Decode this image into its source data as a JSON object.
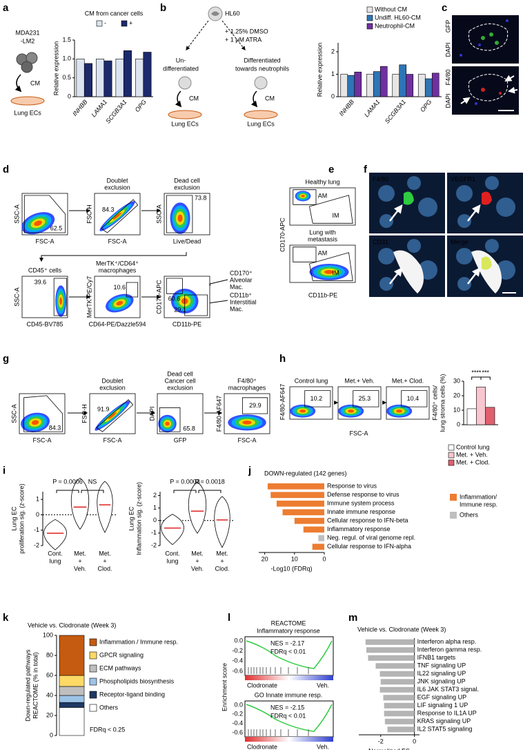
{
  "figure": {
    "panel_labels": [
      "a",
      "b",
      "c",
      "d",
      "e",
      "f",
      "g",
      "h",
      "i",
      "j",
      "k",
      "l",
      "m"
    ],
    "a": {
      "cell_line": [
        "MDA231",
        "-LM2"
      ],
      "cm": "CM",
      "target": "Lung ECs"
    },
    "b": {
      "cell": "HL60",
      "treatment": [
        "+ 1.25% DMSO",
        "+ 1 μM ATRA"
      ],
      "undifferentiated": [
        "Un-",
        "differentiated"
      ],
      "differentiated": [
        "Differentiated",
        "towards neutrophils"
      ],
      "cm": "CM",
      "target": "Lung ECs"
    },
    "c": {
      "top": [
        "GFP",
        "DAPI"
      ],
      "bottom": [
        "F4/80",
        "DAPI"
      ]
    },
    "d": {
      "plots": [
        {
          "y": "SSC-A",
          "x": "FSC-A",
          "gates": [
            62.5
          ]
        },
        {
          "title": [
            "Doublet",
            "exclusion"
          ],
          "y": "FSC-H",
          "x": "FSC-A",
          "gates": [
            84.3
          ]
        },
        {
          "title": [
            "Dead cell",
            "exclusion"
          ],
          "y": "SSC-A",
          "x": "Live/Dead",
          "gates": [
            73.8
          ]
        },
        {
          "title": [
            "CD45⁺ cells"
          ],
          "y": "SSC-A",
          "x": "CD45-BV785",
          "gates": [
            39.6
          ]
        },
        {
          "title": [
            "MerTK⁺/CD64⁺",
            "macrophages"
          ],
          "y": "MerTK-PE/Cy7",
          "x": "CD64-PE/Dazzle594",
          "gates": [
            10.6
          ]
        },
        {
          "y": "CD170-APC",
          "x": "CD11b-PE",
          "gates": [
            60.6,
            29.1
          ]
        }
      ],
      "annotations": [
        [
          "CD170⁺",
          "Alveolar",
          "Mac."
        ],
        [
          "CD11b⁺",
          "Interstitial",
          "Mac."
        ]
      ]
    },
    "e": {
      "plots": [
        {
          "title": [
            "Healthy lung"
          ],
          "gates": [
            "AM",
            "IM"
          ]
        },
        {
          "title": [
            "Lung with",
            "metastasis"
          ],
          "gates": [
            "AM",
            "IM"
          ]
        }
      ],
      "y": "CD170-APC",
      "x": "CD11b-PE"
    },
    "f": {
      "panels": [
        "F4/80",
        "VEGFR1",
        "CD31",
        "Merge"
      ]
    },
    "g": {
      "plots": [
        {
          "y": "SSC-A",
          "x": "FSC-A",
          "gates": [
            84.3
          ]
        },
        {
          "title": [
            "Doublet",
            "exclusion"
          ],
          "y": "FSC-H",
          "x": "FSC-A",
          "gates": [
            91.9
          ]
        },
        {
          "title": [
            "Dead cell",
            "Cancer cell",
            "exclusion"
          ],
          "y": "DAPI",
          "x": "GFP",
          "gates": [
            65.8
          ]
        },
        {
          "title": [
            "F4/80⁺",
            "macrophages"
          ],
          "y": "F4/80-AF647",
          "x": "FSC-A",
          "gates": [
            29.9
          ]
        }
      ]
    },
    "h": {
      "plots": [
        {
          "title": [
            "Control lung"
          ],
          "gates": [
            10.2
          ]
        },
        {
          "title": [
            "Met.+ Veh."
          ],
          "gates": [
            25.3
          ]
        },
        {
          "title": [
            "Met.+ Clod."
          ],
          "gates": [
            10.4
          ]
        }
      ],
      "y": "F4/80-AF647",
      "x": "FSC-A"
    },
    "l": {
      "title": "REACTOME",
      "panels": [
        {
          "title": "Inflammatory response",
          "nes": "NES = -2.17",
          "fdr": "FDRq < 0.01"
        },
        {
          "title": "GO Innate immune resp.",
          "nes": "NES = -2.15",
          "fdr": "FDRq < 0.01"
        }
      ],
      "yticks": [
        "0.0",
        "-0.2",
        "-0.4",
        "-0.6"
      ],
      "ylabel": "Enrichment score",
      "xlabels": [
        "Clodronate",
        "Veh."
      ]
    }
  },
  "chart_data": [
    {
      "type": "bar",
      "ylabel": "Relative expression",
      "legend_title": "CM from cancer cells",
      "categories": [
        "INHBB",
        "LAMA1",
        "SCGB3A1",
        "OPG"
      ],
      "series": [
        {
          "name": "-",
          "color": "#dbe4f0",
          "values": [
            1,
            1,
            1,
            1
          ]
        },
        {
          "name": "+",
          "color": "#1c2a6b",
          "values": [
            0.88,
            0.95,
            1.22,
            1.18
          ]
        }
      ],
      "ylim": [
        0,
        1.5
      ],
      "yticks": [
        0,
        0.5,
        {
          "value": 1,
          "label": "1.0"
        },
        1.5
      ]
    },
    {
      "type": "bar",
      "ylabel": "Relative expression",
      "categories": [
        "INHBB",
        "LAMA1",
        "SCGB3A1",
        "OPG"
      ],
      "series": [
        {
          "name": "Without CM",
          "color": "#e6e6e6",
          "values": [
            1,
            1,
            1,
            1
          ]
        },
        {
          "name": "Undiff. HL60-CM",
          "color": "#2e75b6",
          "values": [
            0.95,
            1.12,
            1.42,
            0.8
          ]
        },
        {
          "name": "Neutrophil-CM",
          "color": "#7030a0",
          "values": [
            1.1,
            1.35,
            1.0,
            1.05
          ]
        }
      ],
      "ylim": [
        0,
        2.4
      ],
      "yticks": [
        0,
        1,
        2
      ]
    },
    {
      "type": "bar",
      "ylabel": [
        "F4/80⁺ cells/",
        "lung stroma cells (%)"
      ],
      "categories": [
        null
      ],
      "series": [
        {
          "name": "Control lung",
          "color": "#ffffff",
          "values": [
            11
          ]
        },
        {
          "name": "Met. + Veh.",
          "color": "#f7c6cf",
          "values": [
            26
          ]
        },
        {
          "name": "Met. + Clod.",
          "color": "#e0606e",
          "values": [
            12
          ]
        }
      ],
      "ylim": [
        0,
        30
      ],
      "yticks": [
        0,
        10,
        20,
        30
      ],
      "annotations": [
        "****",
        "***"
      ]
    },
    {
      "type": "violin",
      "ylabel": [
        "Lung EC",
        "proliferation sig. (z-score)"
      ],
      "categories": [
        [
          "Cont.",
          "lung"
        ],
        [
          "Met.",
          "+",
          "Veh."
        ],
        [
          "Met.",
          "+",
          "Clod."
        ]
      ],
      "values": [
        -1.2,
        0.5,
        0.65
      ],
      "ylim": [
        -2,
        1.5
      ],
      "yticks": [
        -2,
        -1,
        0,
        1
      ],
      "annotations": [
        "P = 0.0006",
        "NS"
      ]
    },
    {
      "type": "violin",
      "ylabel": [
        "Lung EC",
        "Inflammation sig. (z-score)"
      ],
      "categories": [
        [
          "Cont.",
          "lung"
        ],
        [
          "Met.",
          "+",
          "Veh."
        ],
        [
          "Met.",
          "+",
          "Clod."
        ]
      ],
      "values": [
        -0.6,
        0.75,
        0.05
      ],
      "ylim": [
        -2,
        2.3
      ],
      "yticks": [
        -2,
        -1,
        0,
        1,
        2
      ],
      "annotations": [
        "P = 0.0003",
        "P = 0.0018"
      ]
    },
    {
      "type": "barh",
      "title": "DOWN-regulated (142 genes)",
      "categories": [
        "Response to virus",
        "Defense response to virus",
        "Immune system process",
        "Innate immune response",
        "Cellular response to IFN-beta",
        "Inflammatory response",
        "Neg. regul. of viral genome repl.",
        "Cellular response to IFN-alpha"
      ],
      "values": [
        19,
        18,
        16,
        14,
        10,
        7,
        2,
        4
      ],
      "colors": [
        "#ed7d31",
        "#ed7d31",
        "#ed7d31",
        "#ed7d31",
        "#ed7d31",
        "#ed7d31",
        "#bfbfbf",
        "#ed7d31"
      ],
      "legend": [
        {
          "name": [
            "Inflammation/",
            "Immune resp."
          ],
          "color": "#ed7d31"
        },
        {
          "name": [
            "Others"
          ],
          "color": "#bfbfbf"
        }
      ],
      "xlabel": "-Log10 (FDRq)",
      "xlim": [
        0,
        22
      ],
      "xticks": [
        0,
        10,
        20
      ],
      "reversed": true
    },
    {
      "type": "stacked_bar",
      "title": "Vehicle vs. Clodronate (Week 3)",
      "ylabel": [
        "Down-regulated pathways",
        "REACTOME (% in total)"
      ],
      "series": [
        {
          "name": "Inflammation / Immune resp.",
          "color": "#c55a11",
          "values": [
            40
          ]
        },
        {
          "name": "GPCR signaling",
          "color": "#ffd966",
          "values": [
            11
          ]
        },
        {
          "name": "ECM pathways",
          "color": "#bfbfbf",
          "values": [
            9
          ]
        },
        {
          "name": "Phospholipids biosynthesis",
          "color": "#9dc3e6",
          "values": [
            7
          ]
        },
        {
          "name": "Receptor-ligand binding",
          "color": "#1f3864",
          "values": [
            5
          ]
        },
        {
          "name": "Others",
          "color": "#ffffff",
          "values": [
            28
          ]
        }
      ],
      "ylim": [
        0,
        100
      ],
      "yticks": [
        0,
        20,
        40,
        60,
        80,
        100
      ],
      "annotations": [
        "FDRq < 0.25"
      ]
    },
    {
      "type": "barh",
      "title": "Vehicle vs. Clodronate (Week 3)",
      "categories": [
        "Interferon alpha resp.",
        "Interferon gamma resp.",
        "IFNB1 targets",
        "TNF signaling UP",
        "IL22 signaling UP",
        "JNK signaling UP",
        "IL6 JAK STAT3 signal.",
        "EGF signaling UP",
        "LIF signaling 1 UP",
        "Response to IL1A UP",
        "KRAS signaling UP",
        "IL2 STAT5 signaling"
      ],
      "values": [
        -2.9,
        -2.85,
        -2.75,
        -2.3,
        -2.05,
        -2.0,
        -2.05,
        -1.85,
        -1.8,
        -1.8,
        -1.75,
        -1.6
      ],
      "color": "#b4b4b4",
      "xlabel": "Normalized ES",
      "xlim": [
        -3.3,
        0.3
      ],
      "xticks": [
        -2,
        0
      ]
    }
  ]
}
